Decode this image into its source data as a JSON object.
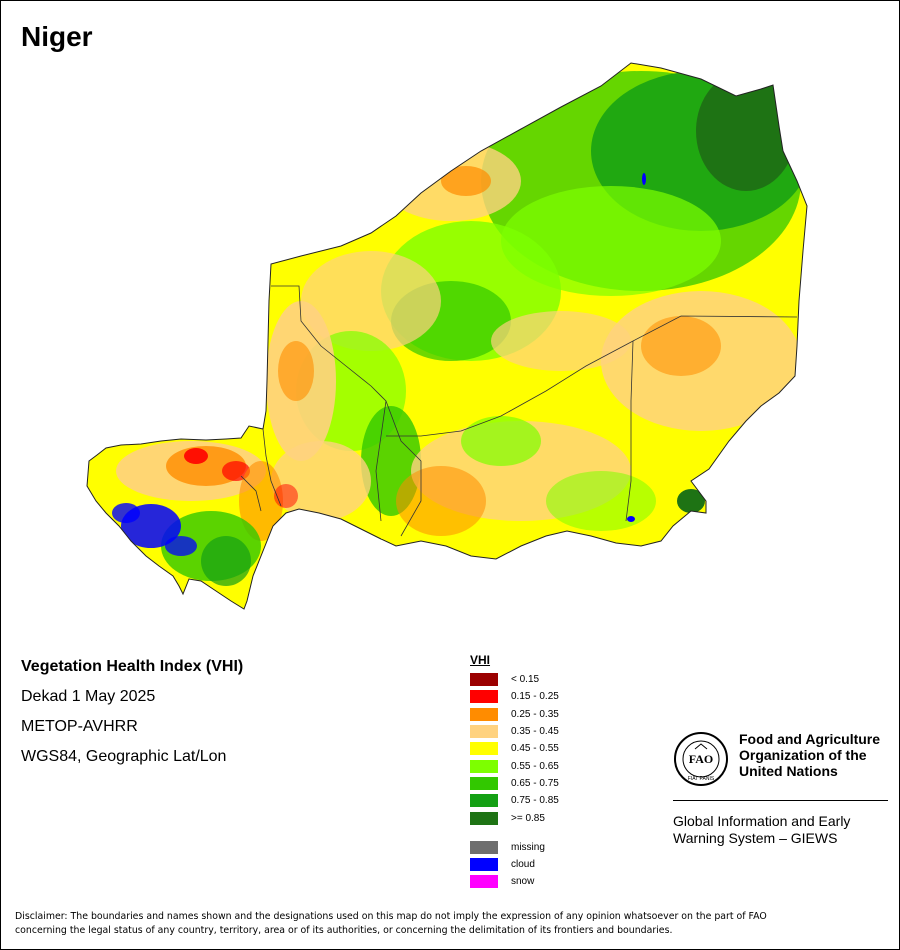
{
  "map": {
    "title": "Niger",
    "subtitle_lines": [
      "Vegetation Health Index (VHI)",
      "Dekad 1 May 2025",
      "METOP-AVHRR",
      "WGS84, Geographic Lat/Lon"
    ]
  },
  "legend": {
    "title": "VHI",
    "classes": [
      {
        "label": "< 0.15",
        "color": "#9b0000"
      },
      {
        "label": "0.15 - 0.25",
        "color": "#ff0000"
      },
      {
        "label": "0.25 - 0.35",
        "color": "#ff8c00"
      },
      {
        "label": "0.35 - 0.45",
        "color": "#ffd27f"
      },
      {
        "label": "0.45 - 0.55",
        "color": "#ffff00"
      },
      {
        "label": "0.55 - 0.65",
        "color": "#7dff00"
      },
      {
        "label": "0.65 - 0.75",
        "color": "#32c800"
      },
      {
        "label": "0.75 - 0.85",
        "color": "#14a014"
      },
      {
        "label": ">= 0.85",
        "color": "#1e7314"
      }
    ],
    "special": [
      {
        "label": "missing",
        "color": "#6e6e6e"
      },
      {
        "label": "cloud",
        "color": "#0000ff"
      },
      {
        "label": "snow",
        "color": "#ff00ff"
      }
    ]
  },
  "organization": {
    "name_lines": [
      "Food and Agriculture",
      "Organization of the",
      "United Nations"
    ],
    "logo_letters": "FAO",
    "logo_motto": "FIAT PANIS",
    "system_lines": [
      "Global Information and Early",
      "Warning System – GIEWS"
    ]
  },
  "disclaimer_lines": [
    "Disclaimer: The boundaries and names shown and the designations used on this map do not imply the expression of any opinion whatsoever on the part of FAO",
    "concerning the legal status of any country, territory, area or of its authorities, or concerning the delimitation of its frontiers and boundaries."
  ]
}
